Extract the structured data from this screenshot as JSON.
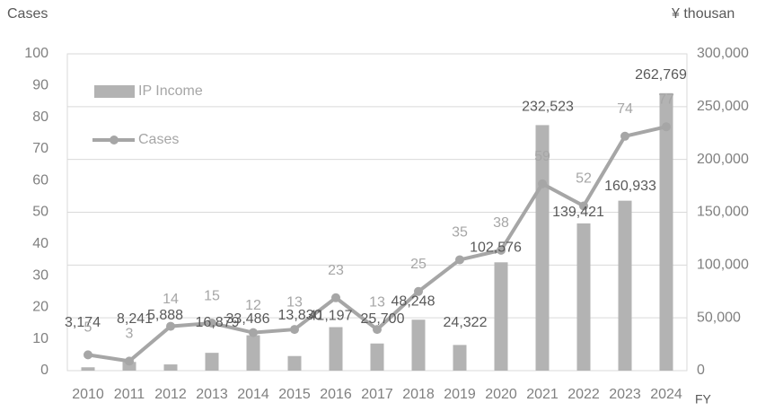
{
  "chart_data": {
    "type": "combo",
    "y_label": "Cases",
    "y2_label": "¥ thousan",
    "x_label": "FY",
    "categories": [
      "2010",
      "2011",
      "2012",
      "2013",
      "2014",
      "2015",
      "2016",
      "2017",
      "2018",
      "2019",
      "2020",
      "2021",
      "2022",
      "2023",
      "2024"
    ],
    "ylim": [
      0,
      100
    ],
    "yticks": [
      0,
      10,
      20,
      30,
      40,
      50,
      60,
      70,
      80,
      90,
      100
    ],
    "y2lim": [
      0,
      300000
    ],
    "y2ticks": [
      0,
      {
        "value": 50000,
        "label": "50,000"
      },
      {
        "value": 100000,
        "label": "100,000"
      },
      {
        "value": 150000,
        "label": "150,000"
      },
      {
        "value": 200000,
        "label": "200,000"
      },
      {
        "value": 250000,
        "label": "250,000"
      },
      {
        "value": 300000,
        "label": "300,000"
      }
    ],
    "grid": true,
    "legend": "upper left",
    "series": [
      {
        "name": "IP Income",
        "type": "bar",
        "axis": "y2",
        "color": "#b3b3b3",
        "values": [
          3174,
          8241,
          5888,
          16879,
          33486,
          13830,
          41197,
          25700,
          48248,
          24322,
          102576,
          232523,
          139421,
          160933,
          262769
        ],
        "value_labels": [
          "3,174",
          "8,241",
          "5,888",
          "16,879",
          "33,486",
          "13,830",
          "41,197",
          "25,700",
          "48,248",
          "24,322",
          "102,576",
          "232,523",
          "139,421",
          "160,933",
          "262,769"
        ]
      },
      {
        "name": "Cases",
        "type": "line",
        "axis": "y",
        "color": "#a6a6a6",
        "values": [
          5,
          3,
          14,
          15,
          12,
          13,
          23,
          13,
          25,
          35,
          38,
          59,
          52,
          74,
          77
        ]
      }
    ]
  }
}
